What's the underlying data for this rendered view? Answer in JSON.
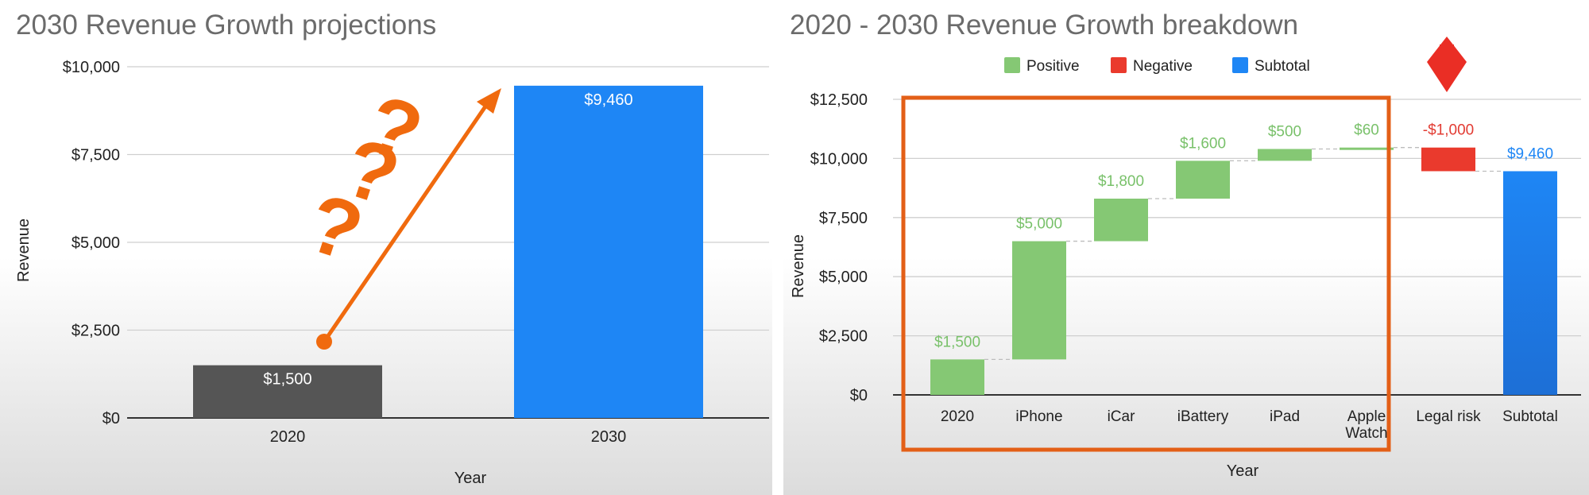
{
  "chart_data": [
    {
      "type": "bar",
      "title": "2030 Revenue Growth projections",
      "xlabel": "Year",
      "ylabel": "Revenue",
      "categories": [
        "2020",
        "2030"
      ],
      "values": [
        1500,
        9460
      ],
      "value_labels": [
        "$1,500",
        "$9,460"
      ],
      "bar_colors": [
        "#555555",
        "#1e86f5"
      ],
      "ylim": [
        0,
        10000
      ],
      "yticks": [
        0,
        2500,
        5000,
        7500,
        10000
      ],
      "ytick_labels": [
        "$0",
        "$2,500",
        "$5,000",
        "$7,500",
        "$10,000"
      ],
      "grid": true,
      "annotations": {
        "arrow_color": "#f06a0e",
        "question_marks": [
          "?",
          "?",
          "?"
        ]
      }
    },
    {
      "type": "waterfall",
      "title": "2020 - 2030 Revenue Growth breakdown",
      "xlabel": "Year",
      "ylabel": "Revenue",
      "legend": {
        "position": "top-center",
        "items": [
          {
            "label": "Positive",
            "color": "#85c874"
          },
          {
            "label": "Negative",
            "color": "#ea3a2d"
          },
          {
            "label": "Subtotal",
            "color": "#1e86f5"
          }
        ]
      },
      "categories": [
        "2020",
        "iPhone",
        "iCar",
        "iBattery",
        "iPad",
        "Apple Watch",
        "Legal risk",
        "Subtotal"
      ],
      "category_lines": [
        [
          "2020"
        ],
        [
          "iPhone"
        ],
        [
          "iCar"
        ],
        [
          "iBattery"
        ],
        [
          "iPad"
        ],
        [
          "Apple",
          "Watch"
        ],
        [
          "Legal risk"
        ],
        [
          "Subtotal"
        ]
      ],
      "values": [
        1500,
        5000,
        1800,
        1600,
        500,
        60,
        -1000,
        9460
      ],
      "kinds": [
        "positive",
        "positive",
        "positive",
        "positive",
        "positive",
        "positive",
        "negative",
        "subtotal"
      ],
      "value_labels": [
        "$1,500",
        "$5,000",
        "$1,800",
        "$1,600",
        "$500",
        "$60",
        "-$1,000",
        "$9,460"
      ],
      "ylim": [
        0,
        12500
      ],
      "yticks": [
        0,
        2500,
        5000,
        7500,
        10000,
        12500
      ],
      "ytick_labels": [
        "$0",
        "$2,500",
        "$5,000",
        "$7,500",
        "$10,000",
        "$12,500"
      ],
      "grid": true,
      "annotations": {
        "highlight_box_color": "#e35f17",
        "highlight_covers": [
          "2020",
          "iPhone",
          "iCar",
          "iBattery",
          "iPad",
          "Apple Watch"
        ],
        "marker_color": "#ea2e25",
        "marker_target": "Legal risk"
      }
    }
  ]
}
